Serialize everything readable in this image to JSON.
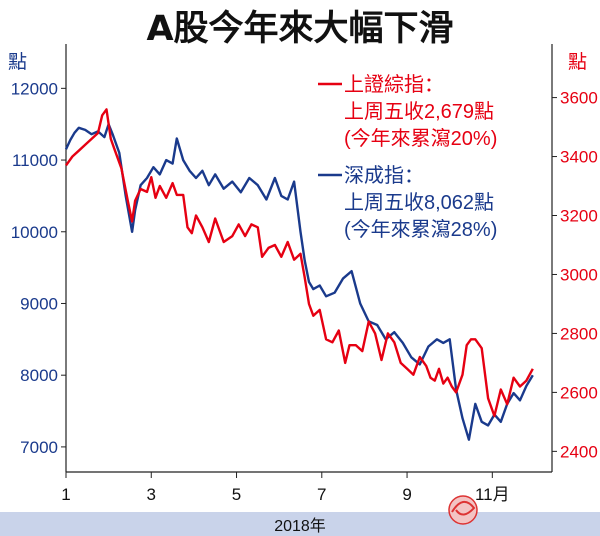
{
  "colors": {
    "shanghai": "#e60012",
    "shenzhen": "#1a3a8c",
    "band": "#c9d3ea",
    "axis": "#222222"
  },
  "chart_data": {
    "type": "line",
    "title": "A股今年來大幅下滑",
    "xlabel": "2018年",
    "x_ticks": [
      "1",
      "3",
      "5",
      "7",
      "9",
      "11月"
    ],
    "x_range": [
      1,
      12.4
    ],
    "y_left": {
      "unit": "點",
      "ticks": [
        7000,
        8000,
        9000,
        10000,
        11000,
        12000
      ],
      "range": [
        6650,
        12200
      ]
    },
    "y_right": {
      "unit": "點",
      "ticks": [
        2400,
        2600,
        2800,
        3000,
        3200,
        3400,
        3600
      ],
      "range": [
        2330,
        3680
      ]
    },
    "legend": {
      "shanghai": {
        "name": "上證綜指：",
        "line1": "上周五收2,679點",
        "line2": "(今年來累瀉20%)"
      },
      "shenzhen": {
        "name": "深成指：",
        "line1": "上周五收8,062點",
        "line2": "(今年來累瀉28%)"
      }
    },
    "series": [
      {
        "name": "上證綜指",
        "axis": "right",
        "x": [
          1.0,
          1.15,
          1.3,
          1.45,
          1.6,
          1.75,
          1.85,
          1.95,
          2.05,
          2.15,
          2.3,
          2.45,
          2.55,
          2.62,
          2.75,
          2.9,
          3.0,
          3.1,
          3.2,
          3.35,
          3.5,
          3.6,
          3.75,
          3.85,
          3.95,
          4.05,
          4.2,
          4.35,
          4.5,
          4.7,
          4.9,
          5.05,
          5.2,
          5.35,
          5.5,
          5.6,
          5.75,
          5.9,
          6.05,
          6.2,
          6.35,
          6.5,
          6.6,
          6.7,
          6.8,
          6.95,
          7.1,
          7.25,
          7.4,
          7.55,
          7.65,
          7.8,
          7.95,
          8.1,
          8.25,
          8.4,
          8.55,
          8.7,
          8.85,
          9.0,
          9.15,
          9.3,
          9.45,
          9.55,
          9.65,
          9.75,
          9.85,
          9.95,
          10.05,
          10.15,
          10.3,
          10.4,
          10.5,
          10.6,
          10.75,
          10.9,
          11.05,
          11.2,
          11.35,
          11.5,
          11.65,
          11.8,
          11.95
        ],
        "values": [
          3370,
          3400,
          3420,
          3440,
          3460,
          3480,
          3540,
          3560,
          3460,
          3420,
          3360,
          3250,
          3180,
          3250,
          3290,
          3280,
          3330,
          3260,
          3300,
          3260,
          3310,
          3270,
          3270,
          3160,
          3140,
          3200,
          3160,
          3110,
          3190,
          3110,
          3130,
          3170,
          3130,
          3170,
          3160,
          3060,
          3090,
          3100,
          3060,
          3110,
          3050,
          3070,
          2990,
          2900,
          2860,
          2880,
          2780,
          2770,
          2810,
          2700,
          2760,
          2760,
          2740,
          2840,
          2800,
          2710,
          2800,
          2770,
          2700,
          2680,
          2660,
          2720,
          2690,
          2650,
          2640,
          2680,
          2630,
          2650,
          2620,
          2600,
          2660,
          2760,
          2780,
          2780,
          2750,
          2580,
          2520,
          2610,
          2560,
          2650,
          2620,
          2640,
          2680
        ]
      },
      {
        "name": "深成指",
        "axis": "left",
        "x": [
          1.0,
          1.1,
          1.2,
          1.3,
          1.45,
          1.6,
          1.75,
          1.9,
          2.0,
          2.1,
          2.25,
          2.4,
          2.55,
          2.62,
          2.75,
          2.9,
          3.05,
          3.2,
          3.35,
          3.5,
          3.6,
          3.75,
          3.9,
          4.05,
          4.2,
          4.35,
          4.5,
          4.7,
          4.9,
          5.1,
          5.3,
          5.5,
          5.7,
          5.9,
          6.05,
          6.2,
          6.35,
          6.5,
          6.6,
          6.7,
          6.8,
          6.95,
          7.1,
          7.3,
          7.5,
          7.7,
          7.9,
          8.1,
          8.3,
          8.5,
          8.7,
          8.9,
          9.1,
          9.3,
          9.5,
          9.7,
          9.85,
          10.0,
          10.15,
          10.3,
          10.45,
          10.6,
          10.75,
          10.9,
          11.05,
          11.2,
          11.35,
          11.5,
          11.65,
          11.8,
          11.95
        ],
        "values": [
          11150,
          11280,
          11380,
          11450,
          11420,
          11360,
          11400,
          11320,
          11500,
          11350,
          11100,
          10500,
          10000,
          10300,
          10650,
          10750,
          10900,
          10800,
          11000,
          10950,
          11300,
          11000,
          10850,
          10750,
          10850,
          10650,
          10800,
          10600,
          10700,
          10550,
          10750,
          10650,
          10450,
          10750,
          10500,
          10450,
          10700,
          10000,
          9600,
          9300,
          9200,
          9250,
          9100,
          9150,
          9350,
          9450,
          9000,
          8750,
          8700,
          8500,
          8600,
          8450,
          8250,
          8150,
          8400,
          8500,
          8450,
          8500,
          7800,
          7400,
          7100,
          7600,
          7350,
          7300,
          7450,
          7350,
          7600,
          7750,
          7650,
          7850,
          8000
        ]
      }
    ]
  }
}
